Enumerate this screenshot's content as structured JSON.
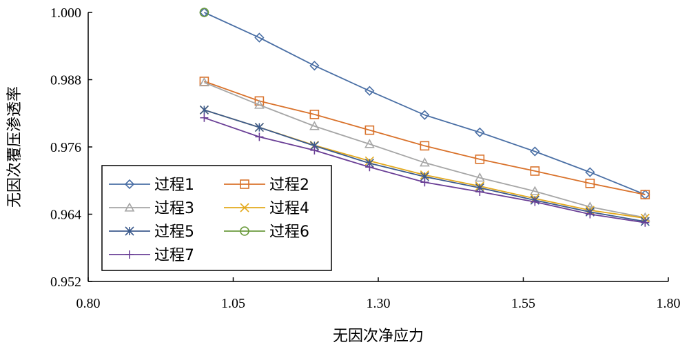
{
  "chart_data": {
    "type": "line",
    "xlabel": "无因次净应力",
    "ylabel": "无因次覆压渗透率",
    "xlim": [
      0.8,
      1.8
    ],
    "ylim": [
      0.952,
      1.0
    ],
    "x_ticks": [
      "0.80",
      "1.05",
      "1.30",
      "1.55",
      "1.80"
    ],
    "y_ticks": [
      "0.952",
      "0.964",
      "0.976",
      "0.988",
      "1.000"
    ],
    "grid": false,
    "legend_position": "bottom-left",
    "series": [
      {
        "name": "过程1",
        "color": "#4a6fa5",
        "marker": "diamond",
        "x": [
          1.0,
          1.095,
          1.19,
          1.285,
          1.38,
          1.475,
          1.57,
          1.665,
          1.76
        ],
        "y": [
          1.0,
          0.9955,
          0.9905,
          0.986,
          0.9817,
          0.9786,
          0.9752,
          0.9715,
          0.9675
        ]
      },
      {
        "name": "过程2",
        "color": "#d9722b",
        "marker": "square",
        "x": [
          1.0,
          1.095,
          1.19,
          1.285,
          1.38,
          1.475,
          1.57,
          1.665,
          1.76
        ],
        "y": [
          0.9877,
          0.9842,
          0.9818,
          0.979,
          0.9762,
          0.9738,
          0.9717,
          0.9695,
          0.9675
        ]
      },
      {
        "name": "过程3",
        "color": "#a6a6a6",
        "marker": "triangle",
        "x": [
          1.0,
          1.095,
          1.19,
          1.285,
          1.38,
          1.475,
          1.57,
          1.665,
          1.76
        ],
        "y": [
          0.9875,
          0.9835,
          0.9797,
          0.9765,
          0.9732,
          0.9705,
          0.9681,
          0.9653,
          0.9634
        ]
      },
      {
        "name": "过程4",
        "color": "#e3a91c",
        "marker": "x",
        "x": [
          1.0,
          1.095,
          1.19,
          1.285,
          1.38,
          1.475,
          1.57,
          1.665,
          1.76
        ],
        "y": [
          0.9826,
          0.9795,
          0.9763,
          0.9735,
          0.971,
          0.969,
          0.9668,
          0.9647,
          0.9633
        ]
      },
      {
        "name": "过程5",
        "color": "#3b5a8c",
        "marker": "asterisk",
        "x": [
          1.0,
          1.095,
          1.19,
          1.285,
          1.38,
          1.475,
          1.57,
          1.665,
          1.76
        ],
        "y": [
          0.9826,
          0.9795,
          0.9762,
          0.9731,
          0.9707,
          0.9687,
          0.9665,
          0.9644,
          0.9627
        ]
      },
      {
        "name": "过程6",
        "color": "#6a9a3b",
        "marker": "circle",
        "x": [
          1.0
        ],
        "y": [
          1.0
        ]
      },
      {
        "name": "过程7",
        "color": "#6a3f96",
        "marker": "plus",
        "x": [
          1.0,
          1.095,
          1.19,
          1.285,
          1.38,
          1.475,
          1.57,
          1.665,
          1.76
        ],
        "y": [
          0.9812,
          0.9778,
          0.9754,
          0.9724,
          0.9697,
          0.968,
          0.9662,
          0.964,
          0.9625
        ]
      }
    ]
  }
}
